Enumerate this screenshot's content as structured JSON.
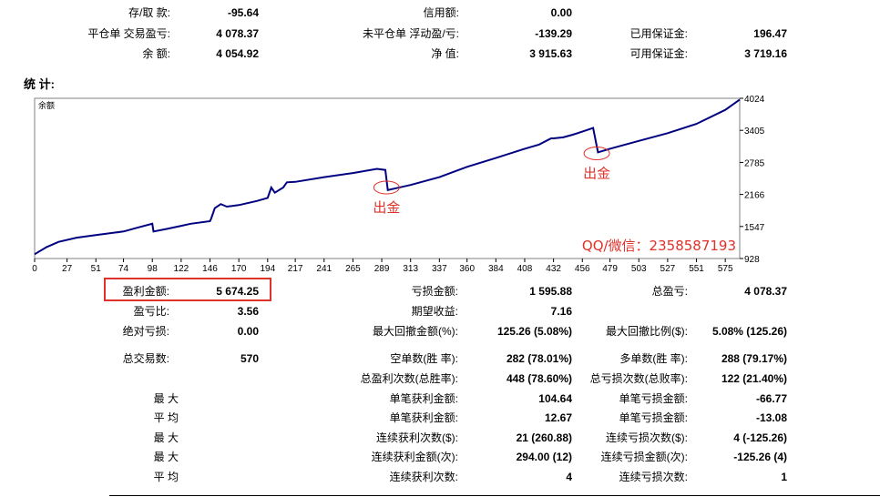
{
  "summary": {
    "deposit_withdraw_label": "存/取 款:",
    "deposit_withdraw_value": "-95.64",
    "credit_label": "信用额:",
    "credit_value": "0.00",
    "closed_pl_label": "平仓单 交易盈亏:",
    "closed_pl_value": "4 078.37",
    "floating_pl_label": "未平仓单 浮动盈/亏:",
    "floating_pl_value": "-139.29",
    "margin_label": "已用保证金:",
    "margin_value": "196.47",
    "balance_label": "余 额:",
    "balance_value": "4 054.92",
    "equity_label": "净 值:",
    "equity_value": "3 915.63",
    "free_margin_label": "可用保证金:",
    "free_margin_value": "3 719.16"
  },
  "stats_title": "统 计:",
  "chart_data": {
    "type": "line",
    "legend": "余额",
    "x_ticks": [
      "0",
      "27",
      "51",
      "74",
      "98",
      "122",
      "146",
      "170",
      "194",
      "217",
      "241",
      "265",
      "289",
      "313",
      "337",
      "360",
      "384",
      "408",
      "432",
      "456",
      "479",
      "503",
      "527",
      "551",
      "575"
    ],
    "y_ticks": [
      "4024",
      "3405",
      "2785",
      "2166",
      "1547",
      "928"
    ],
    "ylim": [
      928,
      4024
    ],
    "xlim": [
      0,
      587
    ],
    "series": [
      {
        "color": "#000080",
        "points": [
          [
            0,
            1010
          ],
          [
            10,
            1150
          ],
          [
            20,
            1250
          ],
          [
            35,
            1330
          ],
          [
            51,
            1380
          ],
          [
            74,
            1450
          ],
          [
            85,
            1520
          ],
          [
            98,
            1600
          ],
          [
            99,
            1450
          ],
          [
            110,
            1500
          ],
          [
            122,
            1560
          ],
          [
            130,
            1600
          ],
          [
            146,
            1650
          ],
          [
            147,
            1700
          ],
          [
            150,
            1900
          ],
          [
            155,
            1980
          ],
          [
            160,
            1930
          ],
          [
            170,
            1960
          ],
          [
            185,
            2040
          ],
          [
            194,
            2100
          ],
          [
            197,
            2300
          ],
          [
            200,
            2200
          ],
          [
            207,
            2300
          ],
          [
            210,
            2400
          ],
          [
            217,
            2410
          ],
          [
            241,
            2500
          ],
          [
            265,
            2580
          ],
          [
            285,
            2660
          ],
          [
            292,
            2640
          ],
          [
            294,
            2250
          ],
          [
            313,
            2350
          ],
          [
            337,
            2500
          ],
          [
            360,
            2700
          ],
          [
            384,
            2870
          ],
          [
            408,
            3050
          ],
          [
            420,
            3130
          ],
          [
            430,
            3250
          ],
          [
            432,
            3250
          ],
          [
            440,
            3270
          ],
          [
            448,
            3320
          ],
          [
            456,
            3380
          ],
          [
            465,
            3450
          ],
          [
            469,
            2980
          ],
          [
            479,
            3050
          ],
          [
            503,
            3200
          ],
          [
            527,
            3350
          ],
          [
            551,
            3530
          ],
          [
            575,
            3800
          ],
          [
            587,
            4000
          ]
        ]
      }
    ],
    "annotations": [
      {
        "text": "出金",
        "x": 293,
        "y": 2300
      },
      {
        "text": "出金",
        "x": 468,
        "y": 2960
      }
    ],
    "watermark": "QQ/微信：2358587193",
    "watermark_color": "#e0312a",
    "annotation_color": "#e0312a"
  },
  "stats": {
    "gross_profit_label": "盈利金额:",
    "gross_profit_value": "5 674.25",
    "gross_loss_label": "亏损金额:",
    "gross_loss_value": "1 595.88",
    "total_net_label": "总盈亏:",
    "total_net_value": "4 078.37",
    "profit_factor_label": "盈亏比:",
    "profit_factor_value": "3.56",
    "expected_payoff_label": "期望收益:",
    "expected_payoff_value": "7.16",
    "abs_drawdown_label": "绝对亏损:",
    "abs_drawdown_value": "0.00",
    "max_dd_label": "最大回撤金额(%):",
    "max_dd_value": "125.26 (5.08%)",
    "rel_dd_label": "最大回撤比例($):",
    "rel_dd_value": "5.08% (125.26)",
    "total_trades_label": "总交易数:",
    "total_trades_value": "570",
    "short_label": "空单数(胜 率):",
    "short_value": "282 (78.01%)",
    "long_label": "多单数(胜 率):",
    "long_value": "288 (79.17%)",
    "profit_trades_label": "总盈利次数(总胜率):",
    "profit_trades_value": "448 (78.60%)",
    "loss_trades_label": "总亏损次数(总败率):",
    "loss_trades_value": "122 (21.40%)",
    "max1_label": "最 大",
    "largest_profit_label": "单笔获利金额:",
    "largest_profit_value": "104.64",
    "largest_loss_label": "单笔亏损金额:",
    "largest_loss_value": "-66.77",
    "avg1_label": "平 均",
    "avg_profit_label": "单笔获利金额:",
    "avg_profit_value": "12.67",
    "avg_loss_label": "单笔亏损金额:",
    "avg_loss_value": "-13.08",
    "max2_label": "最 大",
    "max_consec_wins_label": "连续获利次数($):",
    "max_consec_wins_value": "21 (260.88)",
    "max_consec_losses_label": "连续亏损次数($):",
    "max_consec_losses_value": "4 (-125.26)",
    "max3_label": "最 大",
    "max_consec_profit_label": "连续获利金额(次):",
    "max_consec_profit_value": "294.00 (12)",
    "max_consec_loss_label": "连续亏损金额(次):",
    "max_consec_loss_value": "-125.26 (4)",
    "avg2_label": "平 均",
    "avg_consec_wins_label": "连续获利次数:",
    "avg_consec_wins_value": "4",
    "avg_consec_losses_label": "连续亏损次数:",
    "avg_consec_losses_value": "1"
  }
}
